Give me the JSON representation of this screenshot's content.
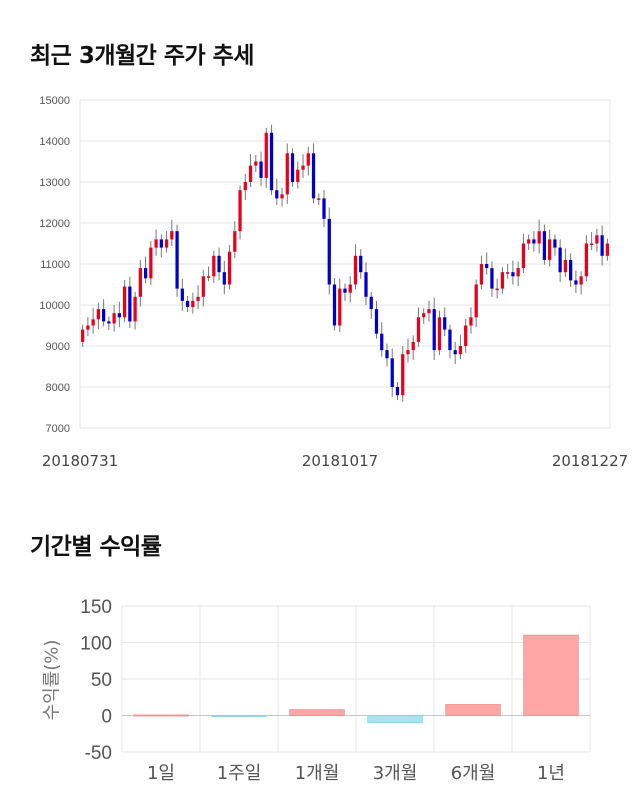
{
  "titles": {
    "price_trend": "최근 3개월간 주가 추세",
    "returns": "기간별 수익률"
  },
  "colors": {
    "up": "#e8001c",
    "down": "#0000cc",
    "grid": "#e6e6e6",
    "bar_positive": "#ffa6a6",
    "bar_negative": "#a6e4f0"
  },
  "chart_data": [
    {
      "type": "candlestick",
      "title": "최근 3개월간 주가 추세",
      "ylim": [
        7000,
        15000
      ],
      "yticks": [
        7000,
        8000,
        9000,
        10000,
        11000,
        12000,
        13000,
        14000,
        15000
      ],
      "date_labels": [
        "20180731",
        "20181017",
        "20181227"
      ],
      "grid": true,
      "series_close": [
        9400,
        9500,
        9650,
        9900,
        9600,
        9550,
        9800,
        9700,
        10450,
        9600,
        10200,
        10900,
        10650,
        11400,
        11600,
        11400,
        11600,
        11800,
        10400,
        10100,
        9950,
        10100,
        10200,
        10700,
        10700,
        11200,
        10800,
        10500,
        11300,
        11800,
        12800,
        13000,
        13400,
        13500,
        13100,
        14200,
        12800,
        12600,
        12700,
        13700,
        13000,
        13300,
        13400,
        13700,
        12600,
        12600,
        12100,
        10500,
        9500,
        10400,
        10300,
        10500,
        11200,
        10800,
        10200,
        9900,
        9300,
        8900,
        8700,
        8000,
        7800,
        8800,
        8900,
        9100,
        9700,
        9800,
        9900,
        8900,
        9700,
        9400,
        8900,
        8800,
        9000,
        9500,
        9700,
        10500,
        11000,
        10900,
        10400,
        10400,
        10800,
        10800,
        10700,
        10900,
        11500,
        11600,
        11500,
        11800,
        11100,
        11600,
        11400,
        10800,
        11100,
        10600,
        10500,
        10700,
        11500,
        11500,
        11700,
        11200,
        11500
      ]
    },
    {
      "type": "bar",
      "title": "기간별 수익률",
      "ylabel": "수익률(%)",
      "ylim": [
        -50,
        150
      ],
      "yticks": [
        -50,
        0,
        50,
        100,
        150
      ],
      "categories": [
        "1일",
        "1주일",
        "1개월",
        "3개월",
        "6개월",
        "1년"
      ],
      "values": [
        0,
        -1,
        8,
        -10,
        15,
        110
      ],
      "grid": true
    }
  ]
}
